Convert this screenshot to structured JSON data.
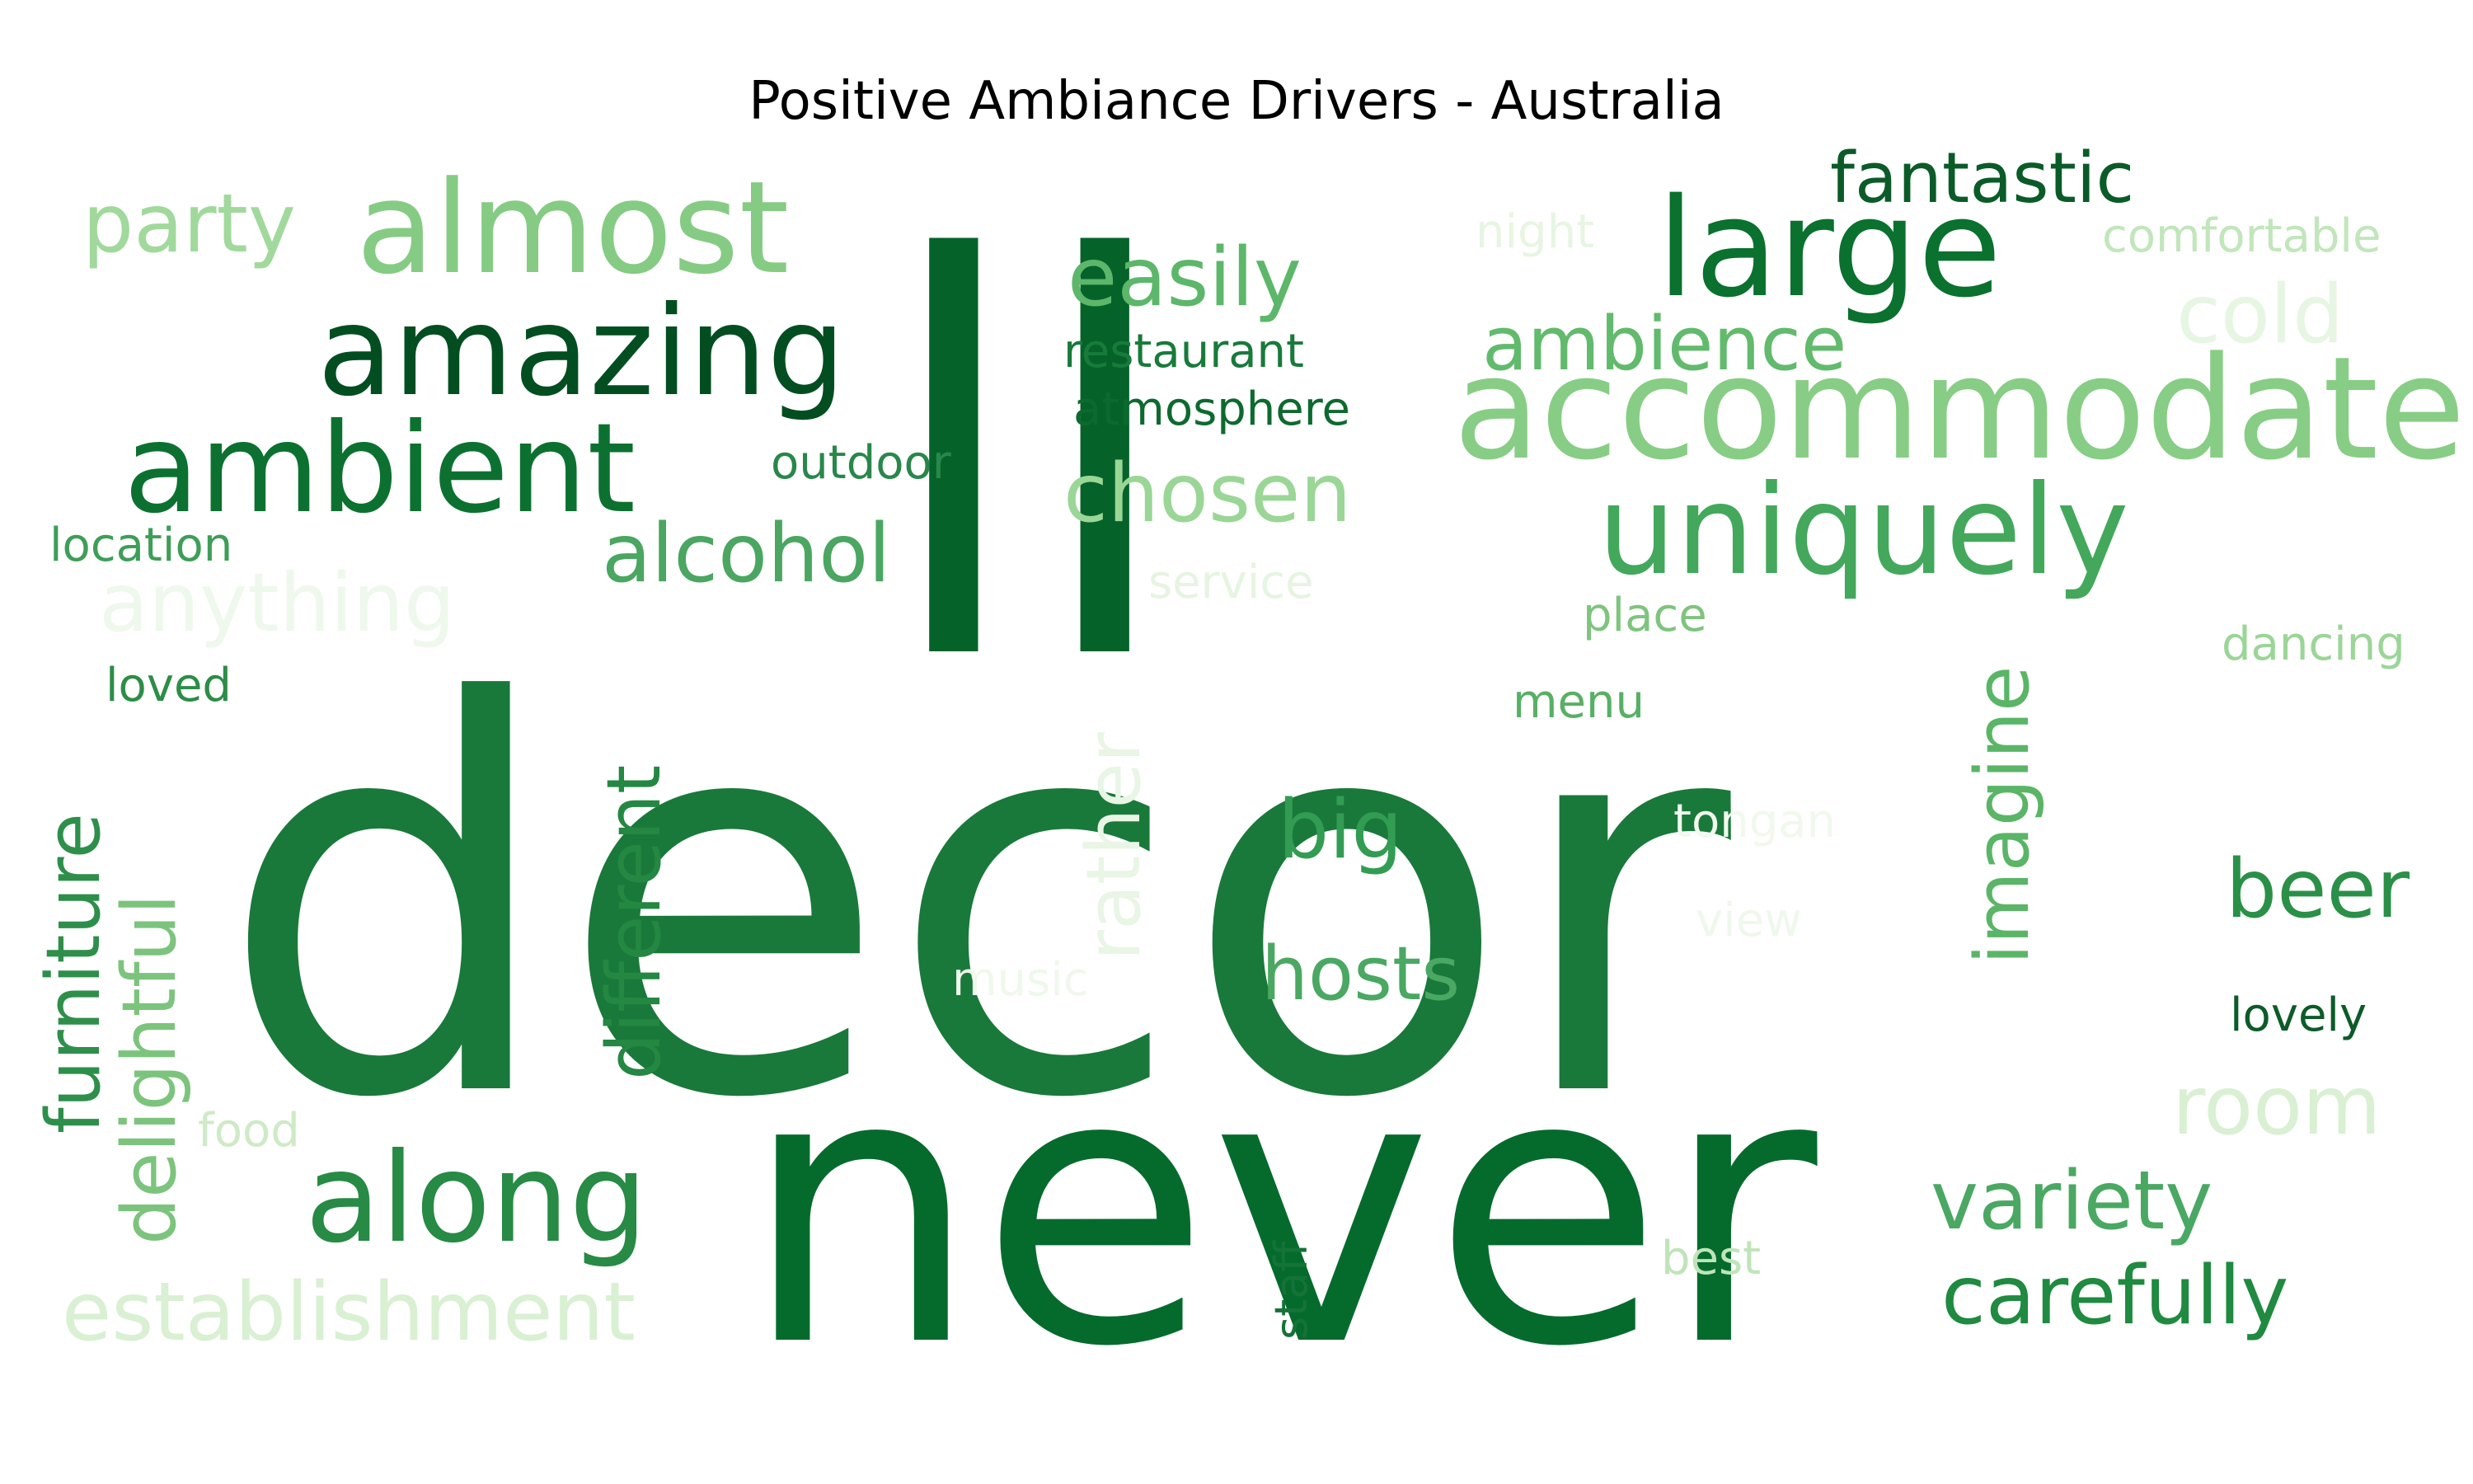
{
  "title": "Positive Ambiance Drivers - Australia",
  "palette": "Greens",
  "words": [
    {
      "text": "decor",
      "color": "#19793a"
    },
    {
      "text": "ll",
      "color": "#05632a"
    },
    {
      "text": "never",
      "color": "#056b2d"
    },
    {
      "text": "accommodate",
      "color": "#88cd85"
    },
    {
      "text": "uniquely",
      "color": "#44a85c"
    },
    {
      "text": "large",
      "color": "#0a712f"
    },
    {
      "text": "almost",
      "color": "#86cb84"
    },
    {
      "text": "amazing",
      "color": "#034e21"
    },
    {
      "text": "ambient",
      "color": "#0c7130"
    },
    {
      "text": "along",
      "color": "#278a45"
    },
    {
      "text": "fantastic",
      "color": "#0b5b28"
    },
    {
      "text": "easily",
      "color": "#5cb76a"
    },
    {
      "text": "ambience",
      "color": "#62ba6d"
    },
    {
      "text": "cold",
      "color": "#e7f5e3"
    },
    {
      "text": "chosen",
      "color": "#9ad696"
    },
    {
      "text": "alcohol",
      "color": "#4aa661"
    },
    {
      "text": "anything",
      "color": "#eff8ec"
    },
    {
      "text": "party",
      "color": "#a1d99c"
    },
    {
      "text": "establishment",
      "color": "#d9f0d3"
    },
    {
      "text": "carefully",
      "color": "#1f8a40"
    },
    {
      "text": "variety",
      "color": "#4aa863"
    },
    {
      "text": "hosts",
      "color": "#4aa863"
    },
    {
      "text": "big",
      "color": "#339c53"
    },
    {
      "text": "beer",
      "color": "#2a9048"
    },
    {
      "text": "room",
      "color": "#d9f0d3"
    },
    {
      "text": "different",
      "color": "#248742"
    },
    {
      "text": "delightful",
      "color": "#7cc47d"
    },
    {
      "text": "furniture",
      "color": "#2e8f4b"
    },
    {
      "text": "imagine",
      "color": "#5ab567"
    },
    {
      "text": "rather",
      "color": "#e9f5e5"
    },
    {
      "text": "restaurant",
      "color": "#187a3b"
    },
    {
      "text": "atmosphere",
      "color": "#0d6a2f"
    },
    {
      "text": "outdoor",
      "color": "#28874a"
    },
    {
      "text": "comfortable",
      "color": "#c2e6bb"
    },
    {
      "text": "night",
      "color": "#e7f5e3"
    },
    {
      "text": "location",
      "color": "#3e9e58"
    },
    {
      "text": "loved",
      "color": "#2c8d47"
    },
    {
      "text": "service",
      "color": "#e6f4e2"
    },
    {
      "text": "place",
      "color": "#7fc47e"
    },
    {
      "text": "dancing",
      "color": "#9bd597"
    },
    {
      "text": "menu",
      "color": "#57b064"
    },
    {
      "text": "tongan",
      "color": "#f1f9ee"
    },
    {
      "text": "view",
      "color": "#eff8ec"
    },
    {
      "text": "music",
      "color": "#eff8ec"
    },
    {
      "text": "food",
      "color": "#ceeac6"
    },
    {
      "text": "best",
      "color": "#c0e4b9"
    },
    {
      "text": "staff",
      "color": "#157238"
    },
    {
      "text": "lovely",
      "color": "#0c5b29"
    }
  ]
}
